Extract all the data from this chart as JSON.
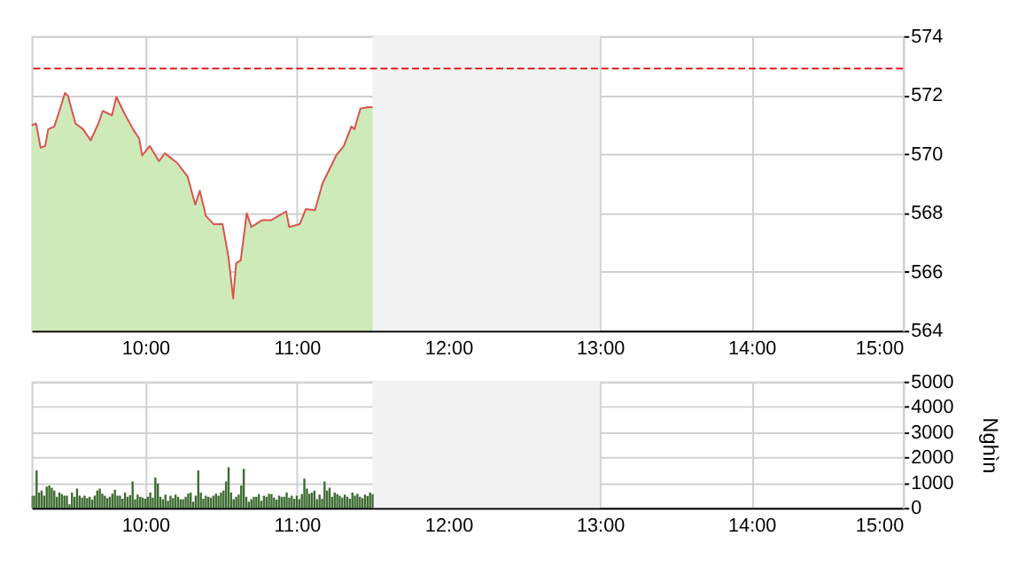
{
  "chart_data": [
    {
      "type": "area",
      "xlim": [
        9.25,
        15
      ],
      "xticks": [
        {
          "value": 10,
          "label": "10:00"
        },
        {
          "value": 11,
          "label": "11:00"
        },
        {
          "value": 12,
          "label": "12:00"
        },
        {
          "value": 13,
          "label": "13:00"
        },
        {
          "value": 14,
          "label": "14:00"
        },
        {
          "value": 15,
          "label": "15:00"
        }
      ],
      "ylim": [
        564,
        574
      ],
      "yticks": [
        564,
        566,
        568,
        570,
        572,
        574
      ],
      "grid": true,
      "x": [
        9.25,
        9.28,
        9.31,
        9.34,
        9.36,
        9.4,
        9.43,
        9.47,
        9.49,
        9.54,
        9.59,
        9.64,
        9.69,
        9.72,
        9.78,
        9.81,
        9.86,
        9.92,
        9.96,
        9.98,
        10.03,
        10.09,
        10.13,
        10.21,
        10.28,
        10.33,
        10.36,
        10.4,
        10.45,
        10.51,
        10.55,
        10.58,
        10.6,
        10.63,
        10.67,
        10.7,
        10.77,
        10.83,
        10.93,
        10.95,
        11.02,
        11.06,
        11.12,
        11.17,
        11.26,
        11.31,
        11.36,
        11.38,
        11.42,
        11.47,
        11.5
      ],
      "series": [
        {
          "color": "#cdeab8",
          "values": [
            570.97,
            571.03,
            570.21,
            570.27,
            570.84,
            570.93,
            571.4,
            572.07,
            571.97,
            571.03,
            570.84,
            570.46,
            571.03,
            571.46,
            571.31,
            571.94,
            571.4,
            570.84,
            570.52,
            569.95,
            570.27,
            569.76,
            570.02,
            569.7,
            569.23,
            568.28,
            568.75,
            567.9,
            567.62,
            567.62,
            566.48,
            565.1,
            566.29,
            566.39,
            567.99,
            567.52,
            567.75,
            567.75,
            568.05,
            567.52,
            567.62,
            568.13,
            568.09,
            569.0,
            569.95,
            570.27,
            570.93,
            570.84,
            571.54,
            571.59,
            571.59
          ]
        },
        {
          "type": "line",
          "color": "#d9534f",
          "values": [
            570.97,
            571.03,
            570.21,
            570.27,
            570.84,
            570.93,
            571.4,
            572.07,
            571.97,
            571.03,
            570.84,
            570.46,
            571.03,
            571.46,
            571.31,
            571.94,
            571.4,
            570.84,
            570.52,
            569.95,
            570.27,
            569.76,
            570.02,
            569.7,
            569.23,
            568.28,
            568.75,
            567.9,
            567.62,
            567.62,
            566.48,
            565.1,
            566.29,
            566.39,
            567.99,
            567.52,
            567.75,
            567.75,
            568.05,
            567.52,
            567.62,
            568.13,
            568.09,
            569.0,
            569.95,
            570.27,
            570.93,
            570.84,
            571.54,
            571.59,
            571.59
          ]
        }
      ],
      "ref_lines": [
        {
          "axis": "y",
          "value": 572.9,
          "color": "#e00000",
          "line_style": "dashed"
        }
      ],
      "bands": [
        {
          "axis": "x",
          "from": 11.5,
          "to": 13,
          "color": "#f2f2f2"
        }
      ]
    },
    {
      "type": "bar",
      "ylabel": "Nghìn",
      "xlim": [
        9.25,
        15
      ],
      "xticks": [
        {
          "value": 10,
          "label": "10:00"
        },
        {
          "value": 11,
          "label": "11:00"
        },
        {
          "value": 12,
          "label": "12:00"
        },
        {
          "value": 13,
          "label": "13:00"
        },
        {
          "value": 14,
          "label": "14:00"
        },
        {
          "value": 15,
          "label": "15:00"
        }
      ],
      "ylim": [
        0,
        5000
      ],
      "yticks": [
        0,
        1000,
        2000,
        3000,
        4000,
        5000
      ],
      "grid": true,
      "x": [
        9.25,
        9.2667,
        9.2833,
        9.3,
        9.3167,
        9.3333,
        9.35,
        9.3667,
        9.3833,
        9.4,
        9.4167,
        9.4333,
        9.45,
        9.4667,
        9.4833,
        9.5,
        9.5167,
        9.5333,
        9.55,
        9.5667,
        9.5833,
        9.6,
        9.6167,
        9.6333,
        9.65,
        9.6667,
        9.6833,
        9.7,
        9.7167,
        9.7333,
        9.75,
        9.7667,
        9.7833,
        9.8,
        9.8167,
        9.8333,
        9.85,
        9.8667,
        9.8833,
        9.9,
        9.9167,
        9.9333,
        9.95,
        9.9667,
        9.9833,
        10,
        10.0167,
        10.0333,
        10.05,
        10.0667,
        10.0833,
        10.1,
        10.1167,
        10.1333,
        10.15,
        10.1667,
        10.1833,
        10.2,
        10.2167,
        10.2333,
        10.25,
        10.2667,
        10.2833,
        10.3,
        10.3167,
        10.3333,
        10.35,
        10.3667,
        10.3833,
        10.4,
        10.4167,
        10.4333,
        10.45,
        10.4667,
        10.4833,
        10.5,
        10.5167,
        10.5333,
        10.55,
        10.5667,
        10.5833,
        10.6,
        10.6167,
        10.6333,
        10.65,
        10.6667,
        10.6833,
        10.7,
        10.7167,
        10.7333,
        10.75,
        10.7667,
        10.7833,
        10.8,
        10.8167,
        10.8333,
        10.85,
        10.8667,
        10.8833,
        10.9,
        10.9167,
        10.9333,
        10.95,
        10.9667,
        10.9833,
        11,
        11.0167,
        11.0333,
        11.05,
        11.0667,
        11.0833,
        11.1,
        11.1167,
        11.1333,
        11.15,
        11.1667,
        11.1833,
        11.2,
        11.2167,
        11.2333,
        11.25,
        11.2667,
        11.2833,
        11.3,
        11.3167,
        11.3333,
        11.35,
        11.3667,
        11.3833,
        11.4,
        11.4167,
        11.4333,
        11.45,
        11.4667,
        11.4833,
        11.5
      ],
      "series": [
        {
          "color": "#3d6b30",
          "values": [
            480,
            480,
            1480,
            600,
            680,
            480,
            840,
            880,
            800,
            680,
            440,
            600,
            540,
            480,
            480,
            140,
            600,
            440,
            760,
            480,
            400,
            480,
            380,
            440,
            320,
            480,
            680,
            760,
            560,
            480,
            380,
            440,
            560,
            720,
            480,
            480,
            360,
            600,
            440,
            500,
            1040,
            340,
            520,
            440,
            400,
            360,
            440,
            600,
            400,
            1200,
            960,
            440,
            340,
            520,
            280,
            480,
            380,
            520,
            440,
            340,
            340,
            440,
            560,
            600,
            240,
            480,
            1480,
            600,
            360,
            480,
            440,
            400,
            480,
            560,
            480,
            600,
            680,
            1040,
            1600,
            600,
            340,
            440,
            520,
            880,
            1540,
            440,
            240,
            340,
            440,
            440,
            540,
            280,
            480,
            440,
            560,
            540,
            400,
            320,
            480,
            440,
            440,
            600,
            400,
            480,
            360,
            480,
            340,
            540,
            1160,
            760,
            560,
            600,
            680,
            340,
            520,
            360,
            1040,
            680,
            800,
            440,
            600,
            540,
            480,
            400,
            520,
            440,
            360,
            600,
            480,
            560,
            440,
            380,
            520,
            460,
            600,
            540
          ]
        }
      ],
      "bands": [
        {
          "axis": "x",
          "from": 11.5,
          "to": 13,
          "color": "#f2f2f2"
        }
      ]
    }
  ]
}
